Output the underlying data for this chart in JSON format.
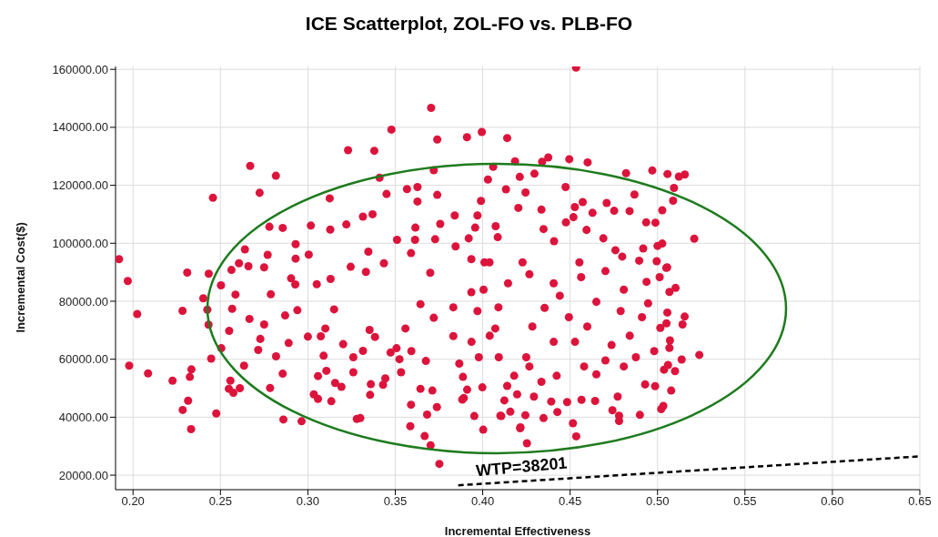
{
  "chart_data": {
    "type": "scatter",
    "title": "ICE Scatterplot, ZOL-FO vs. PLB-FO",
    "xlabel": "Incremental Effectiveness",
    "ylabel": "Incremental Cost($)",
    "marker": "circle",
    "grid": true,
    "xlim": [
      0.19,
      0.65
    ],
    "xticks": [
      {
        "value": 0.2,
        "label": "0.20"
      },
      {
        "value": 0.25,
        "label": "0.25"
      },
      {
        "value": 0.3,
        "label": "0.30"
      },
      {
        "value": 0.35,
        "label": "0.35"
      },
      {
        "value": 0.4,
        "label": "0.40"
      },
      {
        "value": 0.45,
        "label": "0.45"
      },
      {
        "value": 0.5,
        "label": "0.50"
      },
      {
        "value": 0.55,
        "label": "0.55"
      },
      {
        "value": 0.6,
        "label": "0.60"
      },
      {
        "value": 0.65,
        "label": "0.65"
      }
    ],
    "ylim": [
      15000,
      161000
    ],
    "yticks": [
      {
        "value": 20000,
        "label": "20000.00"
      },
      {
        "value": 40000,
        "label": "40000.00"
      },
      {
        "value": 60000,
        "label": "60000.00"
      },
      {
        "value": 80000,
        "label": "80000.00"
      },
      {
        "value": 100000,
        "label": "100000.00"
      },
      {
        "value": 120000,
        "label": "120000.00"
      },
      {
        "value": 140000,
        "label": "140000.00"
      },
      {
        "value": 160000,
        "label": "160000.00"
      }
    ],
    "series": [
      {
        "color": "#dc143c",
        "x": [
          0.3705,
          0.3478,
          0.374,
          0.391,
          0.3995,
          0.414,
          0.323,
          0.338,
          0.267,
          0.2817,
          0.2457,
          0.2724,
          0.341,
          0.3125,
          0.345,
          0.3627,
          0.372,
          0.3567,
          0.3627,
          0.374,
          0.399,
          0.403,
          0.4133,
          0.4204,
          0.3315,
          0.337,
          0.3017,
          0.2856,
          0.278,
          0.3128,
          0.322,
          0.384,
          0.3615,
          0.3757,
          0.264,
          0.277,
          0.293,
          0.3005,
          0.2606,
          0.2563,
          0.266,
          0.275,
          0.231,
          0.2433,
          0.192,
          0.197,
          0.293,
          0.3346,
          0.3435,
          0.351,
          0.359,
          0.3613,
          0.3728,
          0.3845,
          0.3935,
          0.401,
          0.3245,
          0.3332,
          0.37,
          0.4534,
          0.406,
          0.4185,
          0.434,
          0.4375,
          0.4495,
          0.46,
          0.482,
          0.497,
          0.5057,
          0.5122,
          0.5156,
          0.5094,
          0.5089,
          0.4868,
          0.5027,
          0.484,
          0.4474,
          0.4296,
          0.4212,
          0.4245,
          0.4336,
          0.4527,
          0.4572,
          0.4709,
          0.4752,
          0.4628,
          0.4935,
          0.4988,
          0.521,
          0.5,
          0.5027,
          0.4918,
          0.5055,
          0.4995,
          0.4895,
          0.4798,
          0.4476,
          0.4519,
          0.4408,
          0.4594,
          0.4086,
          0.3957,
          0.397,
          0.4074,
          0.2024,
          0.1978,
          0.2086,
          0.2226,
          0.2283,
          0.2334,
          0.2325,
          0.2315,
          0.2284,
          0.2332,
          0.2476,
          0.2402,
          0.2425,
          0.2432,
          0.2503,
          0.2505,
          0.2447,
          0.255,
          0.2567,
          0.2586,
          0.2666,
          0.2557,
          0.2548,
          0.2574,
          0.2611,
          0.2635,
          0.2716,
          0.2728,
          0.275,
          0.2784,
          0.2788,
          0.2818,
          0.2856,
          0.286,
          0.2964,
          0.287,
          0.289,
          0.294,
          0.2928,
          0.2904,
          0.3034,
          0.3058,
          0.3134,
          0.3058,
          0.3106,
          0.3156,
          0.3192,
          0.3074,
          0.309,
          0.31,
          0.3,
          0.3051,
          0.313,
          0.315,
          0.3202,
          0.326,
          0.326,
          0.328,
          0.33,
          0.3315,
          0.3353,
          0.336,
          0.3356,
          0.343,
          0.3443,
          0.3384,
          0.3473,
          0.3507,
          0.3533,
          0.3524,
          0.359,
          0.3586,
          0.3668,
          0.3702,
          0.3752,
          0.3682,
          0.3738,
          0.3712,
          0.3644,
          0.3675,
          0.3592,
          0.3558,
          0.3644,
          0.372,
          0.3832,
          0.3892,
          0.3952,
          0.4003,
          0.3998,
          0.4106,
          0.4214,
          0.4158,
          0.3832,
          0.3935,
          0.409,
          0.4072,
          0.3978,
          0.414,
          0.3887,
          0.4253,
          0.4535,
          0.4516,
          0.4216,
          0.4101,
          0.4244,
          0.4348,
          0.4427,
          0.478,
          0.478,
          0.4742,
          0.4899,
          0.5021,
          0.5033,
          0.5078,
          0.4986,
          0.4929,
          0.4772,
          0.4643,
          0.4565,
          0.4483,
          0.4392,
          0.4293,
          0.4197,
          0.4124,
          0.3911,
          0.3883,
          0.5239,
          0.5138,
          0.51,
          0.506,
          0.5037,
          0.5068,
          0.4981,
          0.5071,
          0.5051,
          0.5143,
          0.5155,
          0.5056,
          0.5016,
          0.5068,
          0.5103,
          0.5012,
          0.505,
          0.4937,
          0.4946,
          0.4911,
          0.4841,
          0.4876,
          0.4807,
          0.4737,
          0.4702,
          0.465,
          0.458,
          0.4528,
          0.4493,
          0.4441,
          0.4354,
          0.4284,
          0.4249,
          0.418,
          0.4092,
          0.404,
          0.397,
          0.3936,
          0.3866,
          0.4005,
          0.4145,
          0.4267,
          0.4406,
          0.4563,
          0.4702,
          0.4807,
          0.465,
          0.4789,
          0.4598,
          0.4406,
          0.4336,
          0.4267,
          0.4423,
          0.392,
          0.4348,
          0.469,
          0.4759,
          0.4228,
          0.4553,
          0.4039
        ],
        "values": [
          146700,
          139200,
          135800,
          136600,
          138400,
          136300,
          132100,
          131900,
          126700,
          123300,
          115700,
          117400,
          122600,
          115500,
          117000,
          119400,
          125200,
          118700,
          114400,
          116700,
          114600,
          122000,
          118600,
          112200,
          109200,
          110000,
          106100,
          105300,
          105700,
          104700,
          106500,
          109600,
          105400,
          106700,
          97900,
          96000,
          99700,
          96100,
          93100,
          90800,
          92100,
          91700,
          89900,
          89500,
          94500,
          87000,
          94700,
          97100,
          93100,
          101200,
          96600,
          101200,
          101400,
          98900,
          94500,
          93400,
          91900,
          90100,
          89800,
          160600,
          126400,
          128300,
          128100,
          129600,
          129000,
          127900,
          124200,
          125100,
          123900,
          123000,
          123700,
          119100,
          114700,
          116800,
          111400,
          111100,
          119400,
          124000,
          122900,
          117500,
          111600,
          112500,
          114200,
          113900,
          111200,
          110500,
          107200,
          107100,
          101600,
          99100,
          99900,
          98200,
          91700,
          93800,
          94000,
          95400,
          107200,
          109000,
          100700,
          104600,
          102100,
          105400,
          109600,
          105900,
          75600,
          57800,
          55100,
          52600,
          76700,
          56500,
          53900,
          45700,
          42500,
          35900,
          41300,
          81000,
          77100,
          71900,
          85500,
          63800,
          60200,
          69800,
          77400,
          82300,
          73900,
          52600,
          49800,
          48400,
          50000,
          57800,
          63200,
          67000,
          72000,
          50100,
          82400,
          61000,
          55000,
          39200,
          38600,
          75100,
          65600,
          76900,
          85800,
          87900,
          47900,
          46300,
          45500,
          54200,
          56000,
          51800,
          50500,
          67900,
          61200,
          70600,
          67800,
          85900,
          87700,
          77200,
          65200,
          60700,
          55500,
          39400,
          39700,
          62900,
          70100,
          51400,
          47700,
          51200,
          53400,
          67700,
          62300,
          63800,
          55500,
          60000,
          44300,
          36900,
          33500,
          30300,
          23900,
          40900,
          43500,
          49200,
          49800,
          59400,
          62800,
          70600,
          79000,
          74300,
          68000,
          46600,
          40400,
          35700,
          50300,
          40400,
          36200,
          41900,
          77900,
          83100,
          77900,
          70600,
          60700,
          50800,
          53900,
          31000,
          33400,
          37900,
          36500,
          40500,
          40700,
          39700,
          41800,
          38700,
          40500,
          42400,
          40800,
          42800,
          43900,
          49200,
          50700,
          51300,
          47100,
          45600,
          46000,
          45200,
          45400,
          47100,
          47900,
          45800,
          49500,
          46100,
          61500,
          59900,
          55900,
          58000,
          56400,
          63900,
          62800,
          66500,
          72400,
          72000,
          74700,
          76100,
          70800,
          83200,
          84600,
          88300,
          91500,
          86700,
          79300,
          74500,
          68100,
          60700,
          57500,
          64900,
          59600,
          54800,
          57500,
          66000,
          74500,
          81900,
          77700,
          71300,
          60700,
          54300,
          60700,
          68100,
          76600,
          66000,
          58500,
          84000,
          86200,
          89300,
          86200,
          88300,
          90400,
          84000,
          79800,
          76600,
          71300,
          66000,
          52200,
          57500,
          54300,
          101700,
          104900,
          101700,
          97600,
          93400,
          93400,
          93400
        ]
      },
      {
        "type": "line",
        "name": "WTP=38201",
        "color": "#000000",
        "marker": "none",
        "line_style": "dashed",
        "x": [
          0.386,
          0.65
        ],
        "values": [
          16500,
          26500
        ]
      }
    ]
  }
}
